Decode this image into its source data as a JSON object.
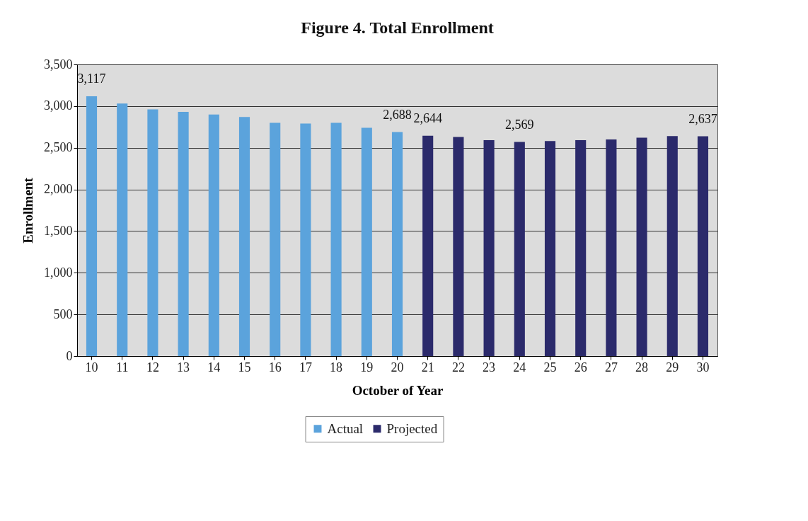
{
  "chart_data": {
    "type": "bar",
    "title": "Figure  4. Total Enrollment",
    "xlabel": "October of Year",
    "ylabel": "Enrollment",
    "categories": [
      "10",
      "11",
      "12",
      "13",
      "14",
      "15",
      "16",
      "17",
      "18",
      "19",
      "20",
      "21",
      "22",
      "23",
      "24",
      "25",
      "26",
      "27",
      "28",
      "29",
      "30"
    ],
    "series": [
      {
        "name": "Actual",
        "color": "#5ba3dc",
        "values": [
          3117,
          3030,
          2960,
          2930,
          2900,
          2870,
          2800,
          2790,
          2800,
          2740,
          2688,
          null,
          null,
          null,
          null,
          null,
          null,
          null,
          null,
          null,
          null
        ],
        "value_labels": [
          "3,117",
          null,
          null,
          null,
          null,
          null,
          null,
          null,
          null,
          null,
          "2,688",
          null,
          null,
          null,
          null,
          null,
          null,
          null,
          null,
          null,
          null
        ]
      },
      {
        "name": "Projected",
        "color": "#2b2a6b",
        "values": [
          null,
          null,
          null,
          null,
          null,
          null,
          null,
          null,
          null,
          null,
          null,
          2644,
          2630,
          2590,
          2569,
          2580,
          2590,
          2600,
          2620,
          2640,
          2637
        ],
        "value_labels": [
          null,
          null,
          null,
          null,
          null,
          null,
          null,
          null,
          null,
          null,
          null,
          "2,644",
          null,
          null,
          "2,569",
          null,
          null,
          null,
          null,
          null,
          "2,637"
        ]
      }
    ],
    "ylim": [
      0,
      3500
    ],
    "yticks": [
      {
        "value": 0,
        "label": "0"
      },
      {
        "value": 500,
        "label": "500"
      },
      {
        "value": 1000,
        "label": "1,000"
      },
      {
        "value": 1500,
        "label": "1,500"
      },
      {
        "value": 2000,
        "label": "2,000"
      },
      {
        "value": 2500,
        "label": "2,500"
      },
      {
        "value": 3000,
        "label": "3,000"
      },
      {
        "value": 3500,
        "label": "3,500"
      }
    ],
    "grid": "y",
    "legend": "bottom"
  }
}
